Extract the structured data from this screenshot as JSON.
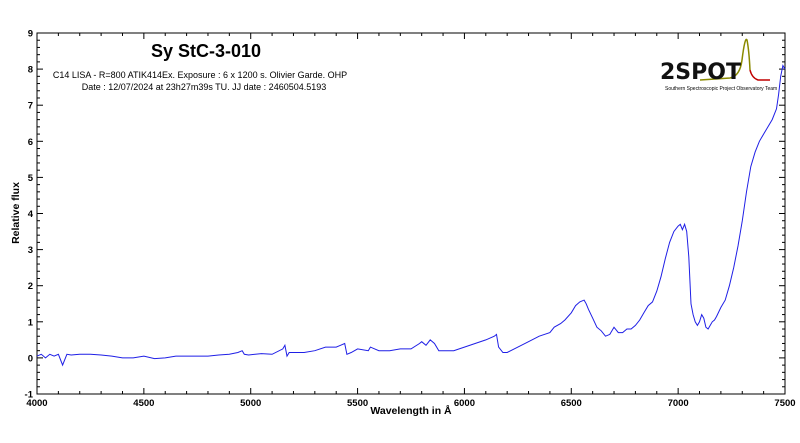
{
  "colors": {
    "spectrum": "#1f1fe6",
    "axis": "#000000",
    "logo_text": "#111111",
    "logo_peak_left": "#8a8a00",
    "logo_peak_right": "#c00000"
  },
  "annotations": {
    "title": "Sy StC-3-010",
    "line1": "C14 LISA - R=800 ATIK414Ex. Exposure : 6 x 1200 s. Olivier Garde. OHP",
    "line2": "Date : 12/07/2024 at 23h27m39s TU. JJ date : 2460504.5193"
  },
  "logo": {
    "text": "2SPOT",
    "subtitle": "Southern Spectroscopic Project Observatory Team",
    "icon": "spectrum-peak-logo"
  },
  "chart_data": {
    "type": "line",
    "title": "Sy StC-3-010",
    "xlabel": "Wavelength in Å",
    "ylabel": "Relative flux",
    "xlim": [
      4000,
      7500
    ],
    "ylim": [
      -1,
      9
    ],
    "xticks": [
      4000,
      4500,
      5000,
      5500,
      6000,
      6500,
      7000,
      7500
    ],
    "yticks": [
      -1,
      0,
      1,
      2,
      3,
      4,
      5,
      6,
      7,
      8,
      9
    ],
    "grid": false,
    "series": [
      {
        "color": "#1f1fe6",
        "x": [
          4000,
          4020,
          4040,
          4060,
          4080,
          4100,
          4120,
          4140,
          4160,
          4200,
          4250,
          4300,
          4350,
          4400,
          4450,
          4500,
          4550,
          4600,
          4650,
          4700,
          4750,
          4800,
          4850,
          4900,
          4940,
          4960,
          4970,
          4990,
          5050,
          5100,
          5150,
          5160,
          5170,
          5180,
          5200,
          5250,
          5300,
          5350,
          5400,
          5420,
          5440,
          5450,
          5470,
          5500,
          5550,
          5560,
          5600,
          5650,
          5700,
          5750,
          5790,
          5800,
          5820,
          5840,
          5860,
          5880,
          5900,
          5950,
          6000,
          6050,
          6100,
          6140,
          6150,
          6160,
          6180,
          6200,
          6250,
          6300,
          6350,
          6400,
          6420,
          6450,
          6470,
          6500,
          6520,
          6540,
          6560,
          6570,
          6580,
          6600,
          6620,
          6640,
          6660,
          6680,
          6700,
          6720,
          6740,
          6760,
          6780,
          6800,
          6820,
          6840,
          6860,
          6880,
          6900,
          6920,
          6940,
          6960,
          6980,
          7000,
          7010,
          7020,
          7030,
          7040,
          7050,
          7060,
          7070,
          7080,
          7090,
          7100,
          7110,
          7120,
          7130,
          7140,
          7150,
          7160,
          7170,
          7180,
          7200,
          7220,
          7240,
          7260,
          7280,
          7300,
          7320,
          7340,
          7360,
          7380,
          7400,
          7420,
          7440,
          7460,
          7470,
          7480,
          7490,
          7500
        ],
        "y": [
          0.05,
          0.1,
          0.0,
          0.1,
          0.05,
          0.1,
          -0.2,
          0.1,
          0.08,
          0.1,
          0.1,
          0.08,
          0.05,
          0.0,
          0.0,
          0.05,
          -0.02,
          0.0,
          0.05,
          0.05,
          0.05,
          0.05,
          0.08,
          0.1,
          0.15,
          0.2,
          0.1,
          0.08,
          0.12,
          0.1,
          0.25,
          0.35,
          0.05,
          0.15,
          0.15,
          0.15,
          0.2,
          0.3,
          0.3,
          0.35,
          0.4,
          0.1,
          0.15,
          0.25,
          0.2,
          0.3,
          0.2,
          0.2,
          0.25,
          0.25,
          0.4,
          0.45,
          0.35,
          0.5,
          0.4,
          0.2,
          0.2,
          0.2,
          0.3,
          0.4,
          0.5,
          0.6,
          0.65,
          0.3,
          0.15,
          0.15,
          0.3,
          0.45,
          0.6,
          0.7,
          0.85,
          0.95,
          1.05,
          1.25,
          1.45,
          1.55,
          1.6,
          1.5,
          1.35,
          1.1,
          0.85,
          0.75,
          0.6,
          0.65,
          0.85,
          0.7,
          0.7,
          0.8,
          0.8,
          0.9,
          1.05,
          1.25,
          1.45,
          1.55,
          1.85,
          2.25,
          2.75,
          3.2,
          3.5,
          3.65,
          3.7,
          3.55,
          3.7,
          3.5,
          2.8,
          1.5,
          1.2,
          1.0,
          0.9,
          1.0,
          1.2,
          1.1,
          0.85,
          0.8,
          0.9,
          1.0,
          1.05,
          1.15,
          1.4,
          1.6,
          2.0,
          2.5,
          3.1,
          3.8,
          4.6,
          5.3,
          5.7,
          6.0,
          6.2,
          6.4,
          6.6,
          6.9,
          7.3,
          7.8,
          8.1,
          8.0
        ]
      }
    ]
  }
}
